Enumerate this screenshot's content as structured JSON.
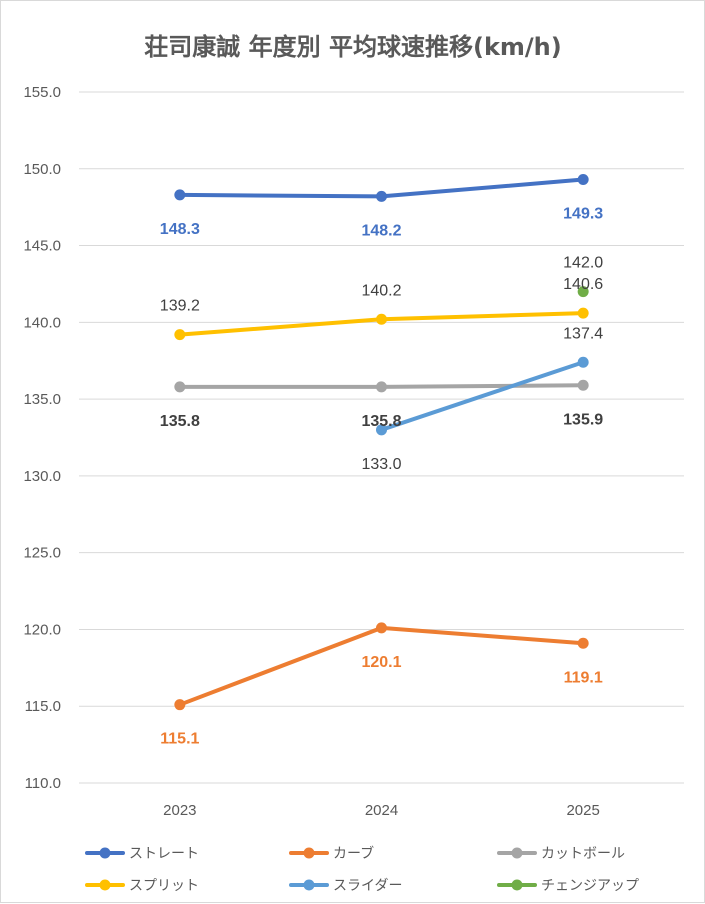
{
  "chart_data": {
    "type": "line",
    "title": "荘司康誠 年度別 平均球速推移(km/h)",
    "categories": [
      "2023",
      "2024",
      "2025"
    ],
    "ylim": [
      110,
      155
    ],
    "yticks": [
      "110.0",
      "115.0",
      "120.0",
      "125.0",
      "130.0",
      "135.0",
      "140.0",
      "145.0",
      "150.0",
      "155.0"
    ],
    "grid": true,
    "legend_position": "bottom",
    "series": [
      {
        "name": "ストレート",
        "color": "#4472c4",
        "values": [
          148.3,
          148.2,
          149.3
        ],
        "labels": [
          "148.3",
          "148.2",
          "149.3"
        ],
        "label_pos": "below",
        "label_bold": true
      },
      {
        "name": "カーブ",
        "color": "#ed7d31",
        "values": [
          115.1,
          120.1,
          119.1
        ],
        "labels": [
          "115.1",
          "120.1",
          "119.1"
        ],
        "label_pos": "below",
        "label_bold": true
      },
      {
        "name": "カットボール",
        "color": "#a5a5a5",
        "values": [
          135.8,
          135.8,
          135.9
        ],
        "labels": [
          "135.8",
          "135.8",
          "135.9"
        ],
        "label_pos": "below",
        "label_bold": true
      },
      {
        "name": "スプリット",
        "color": "#ffc000",
        "values": [
          139.2,
          140.2,
          140.6
        ],
        "labels": [
          "139.2",
          "140.2",
          "140.6"
        ],
        "label_pos": "above",
        "label_bold": false
      },
      {
        "name": "スライダー",
        "color": "#5b9bd5",
        "values": [
          null,
          133.0,
          137.4
        ],
        "labels": [
          null,
          "133.0",
          "137.4"
        ],
        "label_pos": "mixed",
        "label_bold": false
      },
      {
        "name": "チェンジアップ",
        "color": "#70ad47",
        "values": [
          null,
          null,
          142.0
        ],
        "labels": [
          null,
          null,
          "142.0"
        ],
        "label_pos": "above",
        "label_bold": false
      }
    ]
  }
}
